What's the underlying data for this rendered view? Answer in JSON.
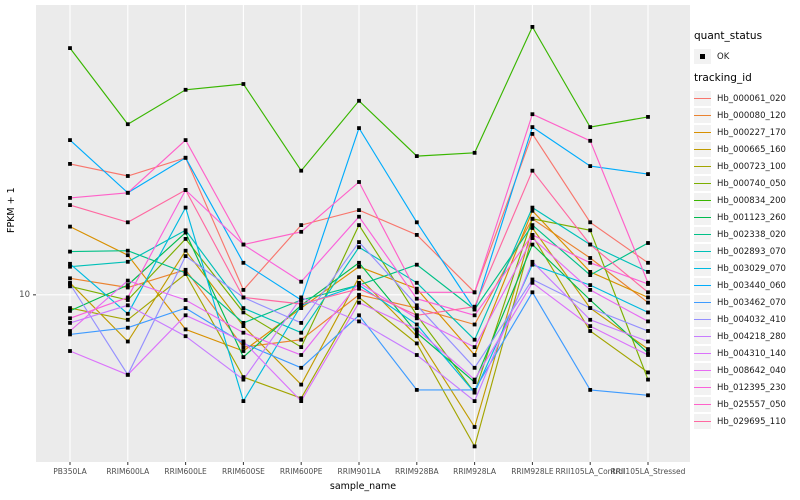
{
  "figure": {
    "panel_bg": "#EBEBEB",
    "grid_color": "#FFFFFF",
    "tick_color": "#333333",
    "tick_label_color": "#4D4D4D",
    "point_color": "#000000"
  },
  "axes": {
    "x_title": "sample_name",
    "y_title": "FPKM + 1",
    "y_tick_label": "10"
  },
  "legend": {
    "quant_status_title": "quant_status",
    "quant_status_items": [
      {
        "label": "OK"
      }
    ],
    "tracking_title": "tracking_id"
  },
  "chart_data": {
    "type": "line",
    "title": "",
    "xlabel": "sample_name",
    "ylabel": "FPKM + 1",
    "y_scale": "log10",
    "ylim": [
      2.65,
      100
    ],
    "y_ticks": [
      {
        "value": 10,
        "label": "10"
      }
    ],
    "grid": "vertical-per-category-plus-y10",
    "legend_position": "right",
    "point_shape": "filled-square",
    "categories": [
      "PB350LA",
      "RRIM600LA",
      "RRIM600LE",
      "RRIM600SE",
      "RRIM600PE",
      "RRIM901LA",
      "RRIM928BA",
      "RRIM928LA",
      "RRIM928LE",
      "RRII105LA_Control",
      "RRII105LA_Stressed"
    ],
    "series": [
      {
        "name": "Hb_000061_020",
        "color": "#F8766D",
        "values": [
          28.3,
          25.7,
          29.7,
          10.4,
          17.4,
          19.6,
          16.1,
          10.2,
          35.9,
          17.8,
          12.9
        ]
      },
      {
        "name": "Hb_000080_120",
        "color": "#EA8331",
        "values": [
          11.4,
          10.6,
          12.2,
          6.6,
          7.0,
          10.0,
          9.0,
          7.9,
          18.3,
          13.4,
          9.4
        ]
      },
      {
        "name": "Hb_000227_170",
        "color": "#D89000",
        "values": [
          17.2,
          13.7,
          7.6,
          6.4,
          9.0,
          12.5,
          10.5,
          6.2,
          19.5,
          12.0,
          9.8
        ]
      },
      {
        "name": "Hb_000665_160",
        "color": "#C09B00",
        "values": [
          11.0,
          6.9,
          14.2,
          7.8,
          4.9,
          11.5,
          7.2,
          3.5,
          17.0,
          9.0,
          6.5
        ]
      },
      {
        "name": "Hb_000723_100",
        "color": "#A3A500",
        "values": [
          9.0,
          8.2,
          11.8,
          5.2,
          4.4,
          9.8,
          6.8,
          3.0,
          16.0,
          7.5,
          5.4
        ]
      },
      {
        "name": "Hb_000740_050",
        "color": "#7CAE00",
        "values": [
          10.7,
          9.6,
          15.6,
          8.7,
          6.6,
          17.4,
          8.5,
          4.6,
          18.3,
          16.7,
          5.1
        ]
      },
      {
        "name": "Hb_000834_200",
        "color": "#39B600",
        "values": [
          71.0,
          38.8,
          51.0,
          53.4,
          26.8,
          46.7,
          30.1,
          30.9,
          84.0,
          37.9,
          41.1
        ]
      },
      {
        "name": "Hb_001123_260",
        "color": "#00BB4E",
        "values": [
          8.8,
          10.8,
          16.4,
          6.1,
          9.2,
          12.9,
          7.4,
          5.0,
          14.9,
          9.6,
          6.3
        ]
      },
      {
        "name": "Hb_002338_020",
        "color": "#00C087",
        "values": [
          14.1,
          14.2,
          11.9,
          8.0,
          9.6,
          10.8,
          12.7,
          8.9,
          17.4,
          11.7,
          15.1
        ]
      },
      {
        "name": "Hb_002893_070",
        "color": "#00C0B8",
        "values": [
          12.5,
          13.0,
          16.7,
          9.0,
          7.4,
          14.6,
          11.0,
          7.0,
          20.0,
          14.9,
          12.0
        ]
      },
      {
        "name": "Hb_003029_070",
        "color": "#00BAE0",
        "values": [
          12.8,
          8.6,
          20.0,
          4.3,
          9.2,
          10.8,
          7.9,
          4.6,
          12.7,
          10.8,
          8.7
        ]
      },
      {
        "name": "Hb_003440_060",
        "color": "#00ACFC",
        "values": [
          34.2,
          22.5,
          29.7,
          12.9,
          9.6,
          37.6,
          17.8,
          8.9,
          37.9,
          27.8,
          26.1
        ]
      },
      {
        "name": "Hb_003462_070",
        "color": "#3E9BFF",
        "values": [
          7.3,
          7.7,
          9.0,
          6.8,
          5.6,
          8.5,
          4.7,
          4.7,
          10.2,
          4.7,
          4.5
        ]
      },
      {
        "name": "Hb_004032_410",
        "color": "#9590FF",
        "values": [
          10.9,
          5.3,
          13.6,
          9.8,
          8.0,
          15.2,
          9.2,
          5.6,
          11.3,
          9.0,
          7.5
        ]
      },
      {
        "name": "Hb_004218_280",
        "color": "#C77CFF",
        "values": [
          8.0,
          9.2,
          7.2,
          5.1,
          9.8,
          8.1,
          6.2,
          4.3,
          13.0,
          8.2,
          6.9
        ]
      },
      {
        "name": "Hb_004310_140",
        "color": "#DB72FB",
        "values": [
          6.4,
          5.3,
          8.5,
          6.9,
          4.3,
          9.4,
          7.6,
          5.1,
          11.0,
          7.8,
          6.2
        ]
      },
      {
        "name": "Hb_008642_040",
        "color": "#E76BF3",
        "values": [
          7.5,
          11.2,
          9.6,
          7.4,
          6.2,
          11.0,
          8.3,
          6.6,
          15.7,
          10.4,
          8.1
        ]
      },
      {
        "name": "Hb_012395_230",
        "color": "#FA62DB",
        "values": [
          8.3,
          9.8,
          23.0,
          14.9,
          11.1,
          18.6,
          9.7,
          8.5,
          16.1,
          12.9,
          10.9
        ]
      },
      {
        "name": "Hb_025557_050",
        "color": "#FF61C9",
        "values": [
          21.6,
          22.5,
          34.2,
          14.9,
          16.5,
          24.5,
          10.2,
          10.2,
          42.0,
          34.0,
          11.0
        ]
      },
      {
        "name": "Hb_029695_110",
        "color": "#FF68A1",
        "values": [
          20.4,
          17.8,
          23.0,
          9.8,
          9.3,
          10.5,
          8.5,
          9.1,
          26.8,
          14.9,
          10.2
        ]
      }
    ]
  }
}
